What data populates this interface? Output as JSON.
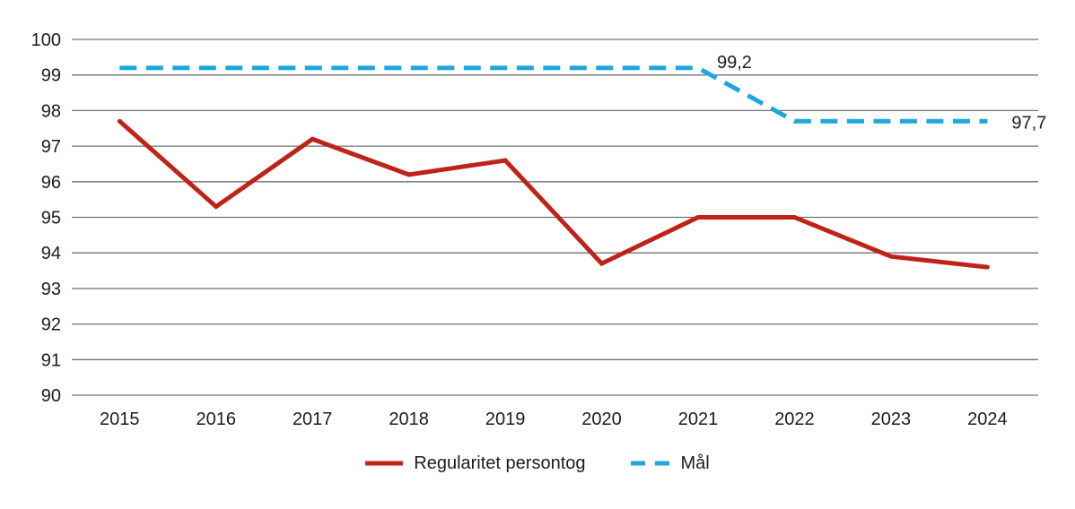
{
  "chart_data": {
    "type": "line",
    "title": "",
    "xlabel": "",
    "ylabel": "",
    "x": [
      2015,
      2016,
      2017,
      2018,
      2019,
      2020,
      2021,
      2022,
      2023,
      2024
    ],
    "series": [
      {
        "name": "Regularitet persontog",
        "style": "solid",
        "color": "#bf2318",
        "values": [
          97.7,
          95.3,
          97.2,
          96.2,
          96.6,
          93.7,
          95.0,
          95.0,
          93.9,
          93.6
        ]
      },
      {
        "name": "Mål",
        "style": "dashed",
        "color": "#1ea7dd",
        "values": [
          99.2,
          99.2,
          99.2,
          99.2,
          99.2,
          99.2,
          99.2,
          97.7,
          97.7,
          97.7
        ]
      }
    ],
    "annotations": [
      {
        "text": "99,2",
        "year": 2021,
        "value": 99.2,
        "series": "Mål",
        "placement": "above-right"
      },
      {
        "text": "97,7",
        "year": 2024,
        "value": 97.7,
        "series": "Mål",
        "placement": "right"
      }
    ],
    "ylim": [
      90,
      100
    ],
    "yticks": [
      100,
      99,
      98,
      97,
      96,
      95,
      94,
      93,
      92,
      91,
      90
    ],
    "grid": "horizontal",
    "grid_color": "#737373",
    "text_color": "#1c1c1c",
    "legend_position": "bottom-center"
  }
}
